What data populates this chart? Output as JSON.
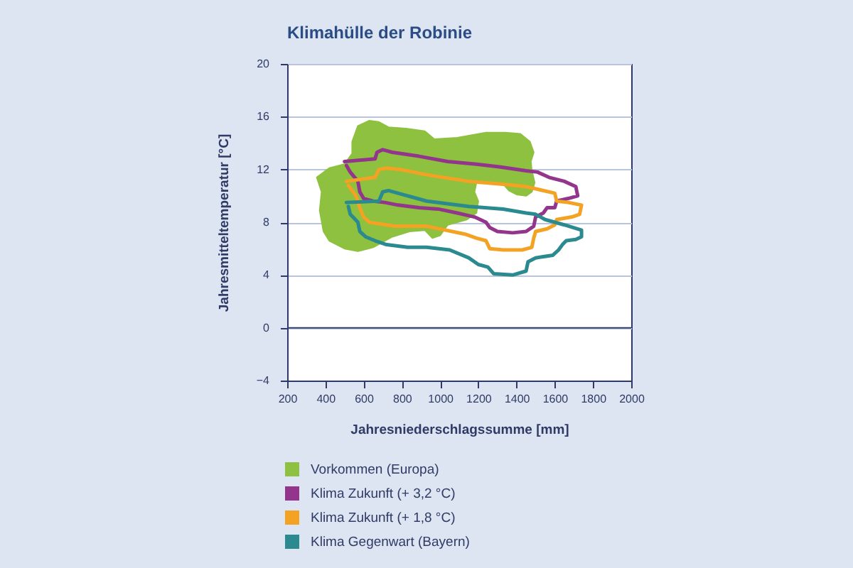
{
  "chart_data": {
    "type": "line",
    "title": "Klimahülle der Robinie",
    "xlabel": "Jahresniederschlagssumme [mm]",
    "ylabel": "Jahresmitteltemperatur [°C]",
    "xlim": [
      200,
      2000
    ],
    "xticks": [
      200,
      400,
      600,
      800,
      1000,
      1200,
      1400,
      1600,
      1800,
      2000
    ],
    "ylim": [
      -4,
      20
    ],
    "yticks": [
      -4,
      0,
      4,
      8,
      12,
      16,
      20
    ],
    "grid": "y",
    "legend": "bottom",
    "line_style": "solid",
    "ref_lines": [
      {
        "axis": "y",
        "value": 0,
        "color": "#34406b"
      }
    ],
    "series": [
      {
        "name": "Vorkommen (Europa)",
        "type": "area",
        "color": "#8dc13f",
        "x": [
          540,
          570,
          630,
          680,
          730,
          820,
          920,
          970,
          1090,
          1240,
          1340,
          1420,
          1470,
          1490,
          1475,
          1480,
          1495,
          1480,
          1450,
          1400,
          1360,
          1330,
          1260,
          1190,
          1180,
          1200,
          1190,
          1140,
          1040,
          1000,
          960,
          920,
          840,
          750,
          650,
          570,
          500,
          420,
          390,
          370,
          380,
          355,
          420,
          500,
          540
        ],
        "values": [
          14.1,
          15.3,
          15.7,
          15.6,
          15.2,
          15.1,
          14.9,
          14.3,
          14.4,
          14.8,
          14.8,
          14.7,
          14.1,
          13.3,
          12.6,
          11.9,
          11.0,
          10.3,
          10.0,
          10.1,
          10.4,
          10.9,
          11.0,
          11.0,
          10.3,
          9.6,
          8.7,
          8.2,
          7.8,
          7.0,
          6.8,
          7.4,
          7.3,
          6.9,
          6.1,
          5.8,
          6.0,
          6.6,
          7.3,
          8.9,
          10.3,
          11.4,
          12.1,
          12.4,
          13.2
        ]
      },
      {
        "name": "Klima Zukunft (+ 3,2 °C)",
        "color": "#93358c",
        "x": [
          500,
          660,
          670,
          700,
          750,
          890,
          1040,
          1190,
          1310,
          1450,
          1510,
          1570,
          1650,
          1710,
          1720,
          1670,
          1610,
          1600,
          1560,
          1540,
          1500,
          1490,
          1450,
          1380,
          1300,
          1260,
          1240,
          1180,
          1090,
          990,
          890,
          780,
          710,
          650,
          600,
          580,
          570,
          530,
          510
        ],
        "values": [
          12.6,
          12.8,
          13.3,
          13.5,
          13.3,
          13.0,
          12.6,
          12.4,
          12.2,
          11.9,
          11.8,
          11.4,
          11.1,
          10.7,
          10.0,
          9.8,
          9.6,
          9.1,
          9.1,
          8.7,
          8.4,
          7.7,
          7.3,
          7.2,
          7.3,
          7.6,
          8.0,
          8.4,
          8.7,
          9.0,
          9.1,
          9.3,
          9.5,
          9.6,
          9.8,
          10.3,
          11.1,
          11.8,
          12.3
        ]
      },
      {
        "name": "Klima Zukunft (+ 1,8 °C)",
        "color": "#f4a223",
        "x": [
          510,
          660,
          680,
          720,
          790,
          930,
          1150,
          1310,
          1450,
          1510,
          1600,
          1610,
          1670,
          1740,
          1730,
          1690,
          1610,
          1600,
          1560,
          1500,
          1490,
          1480,
          1430,
          1330,
          1260,
          1240,
          1190,
          1130,
          930,
          760,
          630,
          600,
          580,
          560,
          520
        ],
        "values": [
          11.1,
          11.4,
          12.0,
          12.1,
          12.0,
          11.6,
          11.1,
          10.9,
          10.7,
          10.5,
          10.2,
          9.6,
          9.5,
          9.3,
          8.6,
          8.4,
          8.2,
          7.8,
          7.5,
          7.3,
          6.8,
          6.1,
          5.9,
          5.9,
          6.0,
          6.6,
          6.8,
          7.1,
          7.7,
          7.7,
          8.0,
          8.4,
          9.1,
          10.0,
          10.8
        ]
      },
      {
        "name": "Klima Gegenwart (Bayern)",
        "color": "#2a8a8f",
        "x": [
          510,
          680,
          700,
          730,
          780,
          930,
          1150,
          1330,
          1450,
          1500,
          1550,
          1650,
          1740,
          1740,
          1710,
          1660,
          1640,
          1620,
          1590,
          1500,
          1460,
          1450,
          1380,
          1280,
          1250,
          1200,
          1150,
          1050,
          930,
          830,
          720,
          660,
          610,
          580,
          570,
          530,
          520
        ],
        "values": [
          9.5,
          9.6,
          10.3,
          10.4,
          10.2,
          9.6,
          9.2,
          9.0,
          8.7,
          8.6,
          8.2,
          7.8,
          7.4,
          6.9,
          6.7,
          6.6,
          6.3,
          5.9,
          5.5,
          5.3,
          5.0,
          4.3,
          4.0,
          4.1,
          4.6,
          4.8,
          5.3,
          5.9,
          6.1,
          6.1,
          6.3,
          6.6,
          6.9,
          7.3,
          8.0,
          8.6,
          9.2
        ]
      }
    ]
  }
}
